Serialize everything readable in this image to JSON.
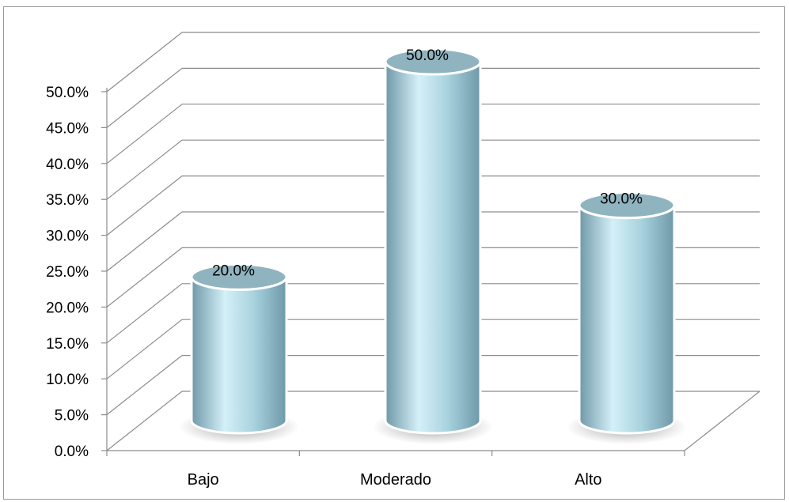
{
  "chart_data": {
    "type": "bar",
    "categories": [
      "Bajo",
      "Moderado",
      "Alto"
    ],
    "values": [
      20.0,
      50.0,
      30.0
    ],
    "data_labels": [
      "20.0%",
      "50.0%",
      "30.0%"
    ],
    "ylim": [
      0,
      50
    ],
    "y_ticks": [
      "0.0%",
      "5.0%",
      "10.0%",
      "15.0%",
      "20.0%",
      "25.0%",
      "30.0%",
      "35.0%",
      "40.0%",
      "45.0%",
      "50.0%"
    ],
    "grid": true,
    "legend": "none",
    "style": "3d-cylinder"
  },
  "colors": {
    "bar_body": "#a9d3df",
    "bar_highlight": "#d4f0f8",
    "bar_shadow": "#6f98a8",
    "bar_top": "#8fb3bf",
    "grid": "#8c8c8c",
    "text": "#000000"
  }
}
